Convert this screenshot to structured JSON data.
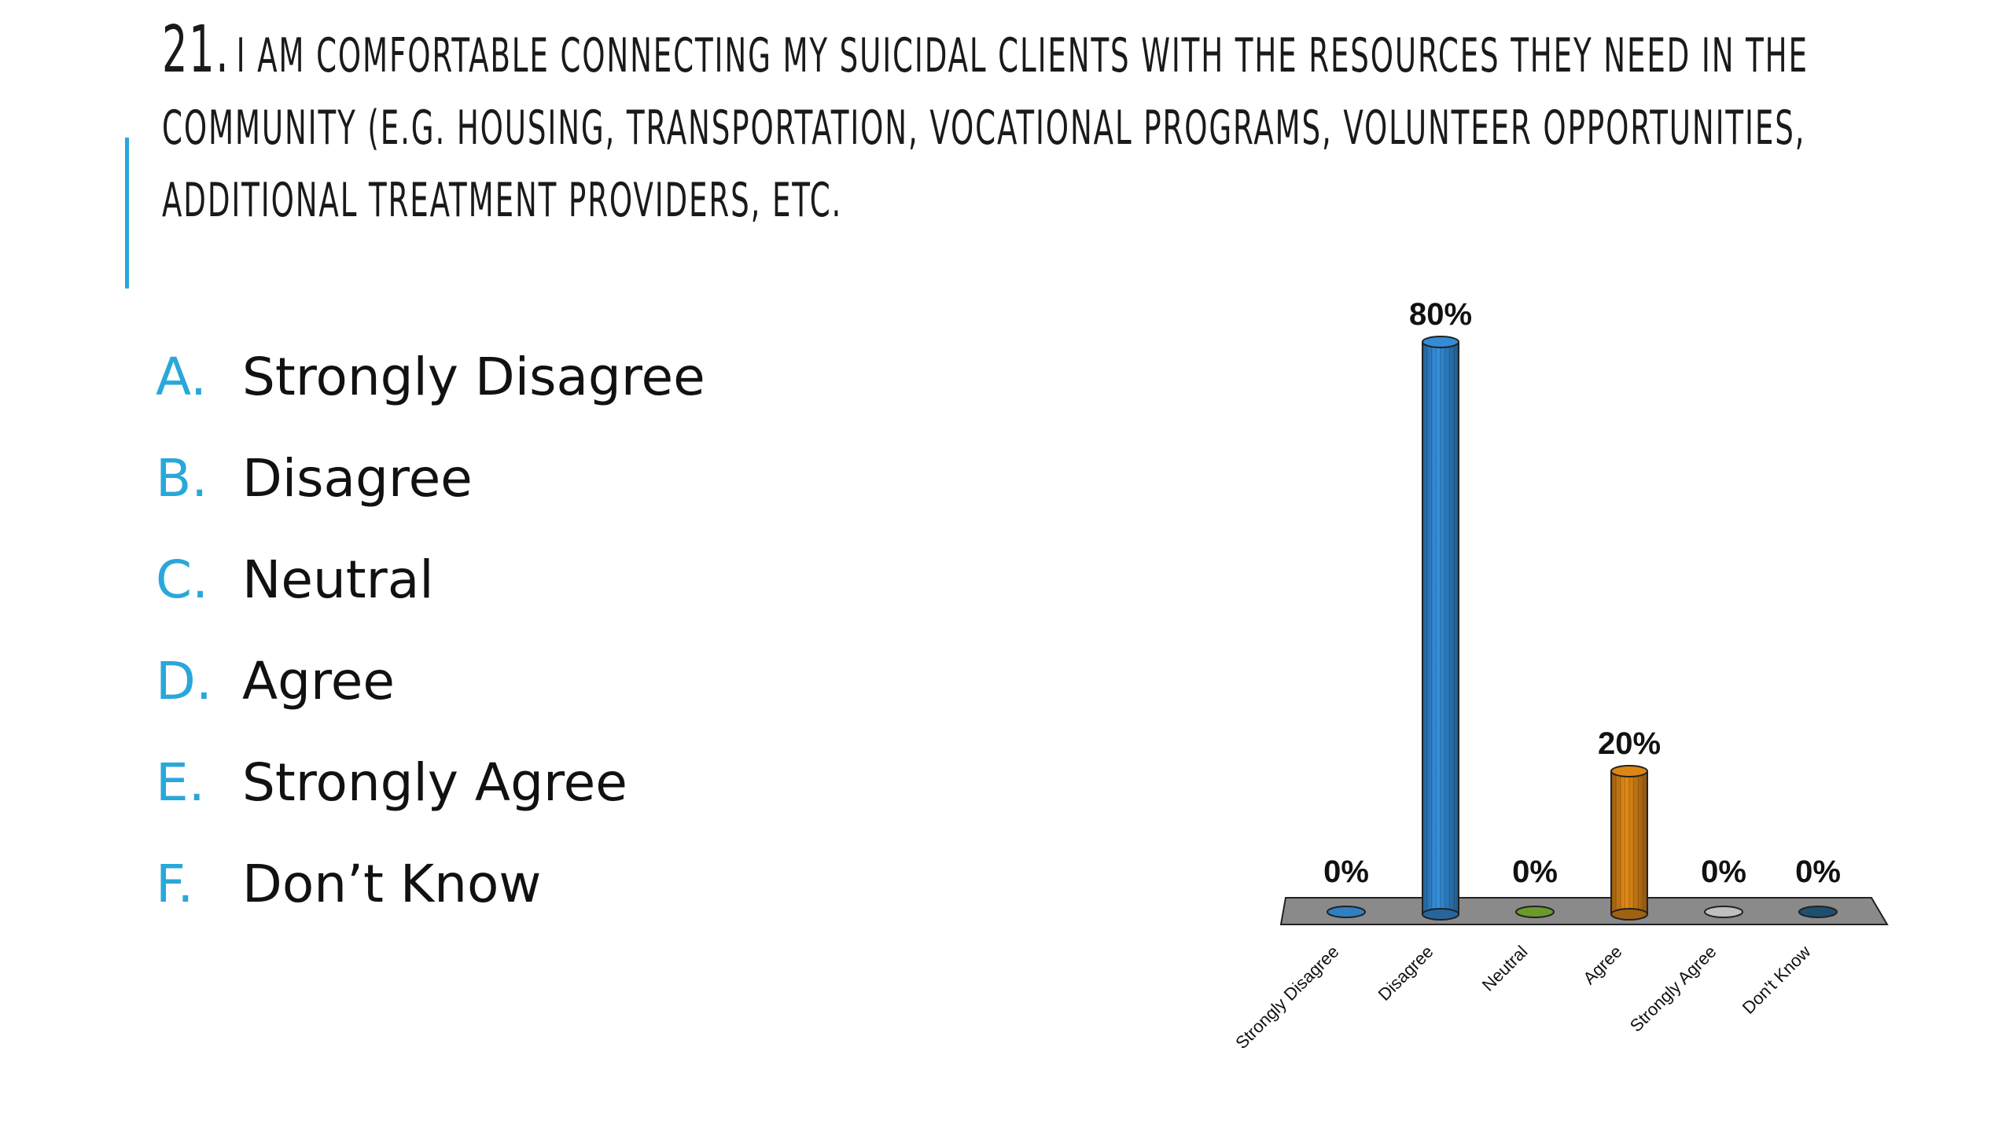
{
  "question": {
    "number": "21.",
    "text": "I AM COMFORTABLE CONNECTING MY SUICIDAL CLIENTS WITH THE RESOURCES THEY NEED IN THE COMMUNITY (E.G. HOUSING, TRANSPORTATION, VOCATIONAL PROGRAMS, VOLUNTEER OPPORTUNITIES, ADDITIONAL TREATMENT PROVIDERS, ETC."
  },
  "options": [
    {
      "letter": "A.",
      "label": "Strongly Disagree"
    },
    {
      "letter": "B.",
      "label": "Disagree"
    },
    {
      "letter": "C.",
      "label": "Neutral"
    },
    {
      "letter": "D.",
      "label": "Agree"
    },
    {
      "letter": "E.",
      "label": "Strongly Agree"
    },
    {
      "letter": "F.",
      "label": "Don’t Know"
    }
  ],
  "colors": {
    "accent": "#2aa7d9",
    "floor": "#8a8a8a",
    "bars": [
      "#2f7fc4",
      "#2f7fc4",
      "#6a9a2a",
      "#c87a14",
      "#bfbfbf",
      "#1f4f6e"
    ]
  },
  "chart_data": {
    "type": "bar",
    "style": "3d-cylinder",
    "categories": [
      "Strongly Disagree",
      "Disagree",
      "Neutral",
      "Agree",
      "Strongly Agree",
      "Don't Know"
    ],
    "values": [
      0,
      80,
      0,
      20,
      0,
      0
    ],
    "value_labels": [
      "0%",
      "80%",
      "0%",
      "20%",
      "0%",
      "0%"
    ],
    "unit": "%",
    "ylim": [
      0,
      80
    ],
    "grid": false,
    "legend": "none"
  }
}
